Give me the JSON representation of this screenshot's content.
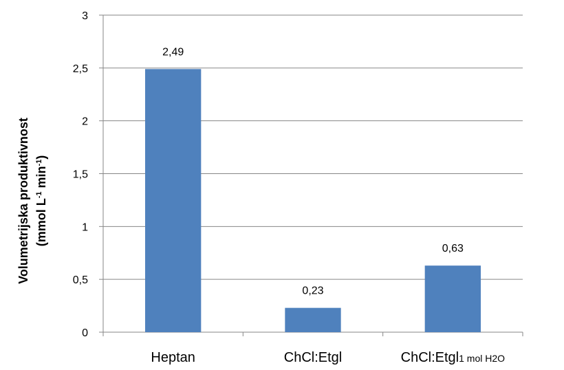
{
  "chart_data": {
    "type": "bar",
    "categories": [
      "Heptan",
      "ChCl:Etgl",
      "ChCl:Etgl"
    ],
    "category_suffixes": [
      "",
      "",
      "1 mol H2O"
    ],
    "values": [
      2.49,
      0.23,
      0.63
    ],
    "data_labels": [
      "2,49",
      "0,23",
      "0,63"
    ],
    "ylabel_line1": "Volumetrijska produktivnost",
    "ylabel_line2_parts": [
      "(mmol L",
      "-1",
      " min",
      "-1",
      ")"
    ],
    "ylim": [
      0,
      3
    ],
    "yticks": [
      0,
      0.5,
      1,
      1.5,
      2,
      2.5,
      3
    ],
    "ytick_labels": [
      "0",
      "0,5",
      "1",
      "1,5",
      "2",
      "2,5",
      "3"
    ],
    "grid": true,
    "legend": "none",
    "bar_color": "#4F81BD",
    "grid_color": "#868686"
  }
}
